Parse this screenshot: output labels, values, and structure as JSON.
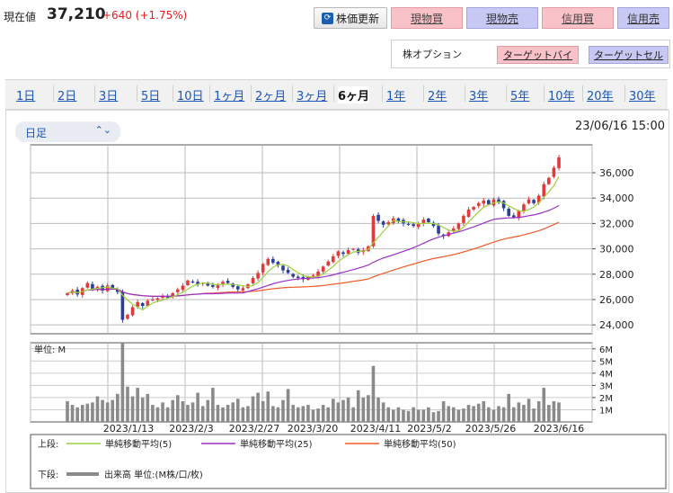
{
  "header": {
    "price_label": "現在値",
    "price": "37,210",
    "change": "+640 (+1.75%)",
    "refresh_label": "株価更新",
    "trade_buttons": [
      "現物買",
      "現物売",
      "信用買",
      "信用売"
    ]
  },
  "options": {
    "label": "株オプション",
    "target_buy": "ターゲットバイ",
    "target_sell": "ターゲットセル"
  },
  "tabs": [
    "1日",
    "2日",
    "3日",
    "5日",
    "10日",
    "1ヶ月",
    "2ヶ月",
    "3ヶ月",
    "6ヶ月",
    "1年",
    "2年",
    "3年",
    "5年",
    "10年",
    "20年",
    "30年"
  ],
  "selected_tab": "6ヶ月",
  "period_select": "日足",
  "datetime": "23/06/16 15:00",
  "colors": {
    "up": "#e03a3a",
    "down": "#2a3e9e",
    "ma5": "#9dcf3f",
    "ma25": "#9b2fc9",
    "ma50": "#f05a28",
    "volume": "#8a8a8a"
  },
  "chart_data": {
    "type": "candlestick",
    "price_axis": {
      "ticks": [
        "36,000",
        "34,000",
        "32,000",
        "30,000",
        "28,000",
        "26,000",
        "24,000"
      ],
      "ylim": [
        23300,
        38200
      ]
    },
    "volume_axis": {
      "unit_label": "単位: M",
      "ticks": [
        "6M",
        "5M",
        "4M",
        "3M",
        "2M",
        "1M"
      ],
      "ylim": [
        0,
        6.5
      ]
    },
    "x_ticks": [
      "2023/1/13",
      "2023/2/3",
      "2023/2/27",
      "2023/3/20",
      "2023/4/11",
      "2023/5/2",
      "2023/5/26",
      "2023/6/16"
    ],
    "candles_close": [
      26500,
      26700,
      26400,
      26900,
      27300,
      26800,
      27000,
      26700,
      27100,
      26900,
      26600,
      24400,
      24800,
      25400,
      25800,
      25500,
      25900,
      26000,
      26100,
      26300,
      26200,
      26500,
      26800,
      27100,
      27500,
      27400,
      27200,
      27300,
      27100,
      27000,
      27200,
      27400,
      27300,
      27000,
      26800,
      26900,
      27200,
      27700,
      28100,
      28800,
      29200,
      28900,
      28700,
      28300,
      28100,
      27800,
      27700,
      27600,
      27800,
      27900,
      28200,
      28600,
      29000,
      29400,
      29800,
      29600,
      29900,
      30000,
      29700,
      29900,
      30200,
      32600,
      32200,
      31900,
      32100,
      32400,
      32200,
      32000,
      31900,
      31800,
      32000,
      32300,
      32100,
      31800,
      31200,
      31000,
      31300,
      31600,
      32000,
      32600,
      33100,
      33300,
      33600,
      33800,
      33500,
      33900,
      33700,
      33200,
      32600,
      32500,
      33000,
      33500,
      33900,
      33600,
      34200,
      35100,
      35600,
      36400,
      37210
    ],
    "volume": [
      1.7,
      1.4,
      1.2,
      1.4,
      1.5,
      1.6,
      2.1,
      1.8,
      1.6,
      1.8,
      2.3,
      6.5,
      2.9,
      2.1,
      2.8,
      2.0,
      2.3,
      1.4,
      1.2,
      1.6,
      1.2,
      1.8,
      2.2,
      1.7,
      1.4,
      1.6,
      2.4,
      1.3,
      1.8,
      2.8,
      1.4,
      1.2,
      1.4,
      1.6,
      1.9,
      1.2,
      1.3,
      2.1,
      2.4,
      1.7,
      2.5,
      1.3,
      1.2,
      1.8,
      2.7,
      1.4,
      1.2,
      1.3,
      1.4,
      1.0,
      1.1,
      1.4,
      1.2,
      1.9,
      1.6,
      1.8,
      2.0,
      1.2,
      2.6,
      2.0,
      2.2,
      4.6,
      2.0,
      1.6,
      1.2,
      1.0,
      1.2,
      1.0,
      0.9,
      1.2,
      1.0,
      1.0,
      1.2,
      0.8,
      0.9,
      1.7,
      1.3,
      1.2,
      1.0,
      1.1,
      1.4,
      1.3,
      1.5,
      1.7,
      1.2,
      1.0,
      1.3,
      1.2,
      2.3,
      1.2,
      1.6,
      1.4,
      1.9,
      1.1,
      1.7,
      2.8,
      1.4,
      1.7,
      1.6
    ],
    "legend": {
      "upper_label": "上段:",
      "lower_label": "下段:",
      "series": [
        "単純移動平均(5)",
        "単純移動平均(25)",
        "単純移動平均(50)"
      ],
      "volume_series": "出来高 単位:(M株/口/枚)"
    }
  }
}
